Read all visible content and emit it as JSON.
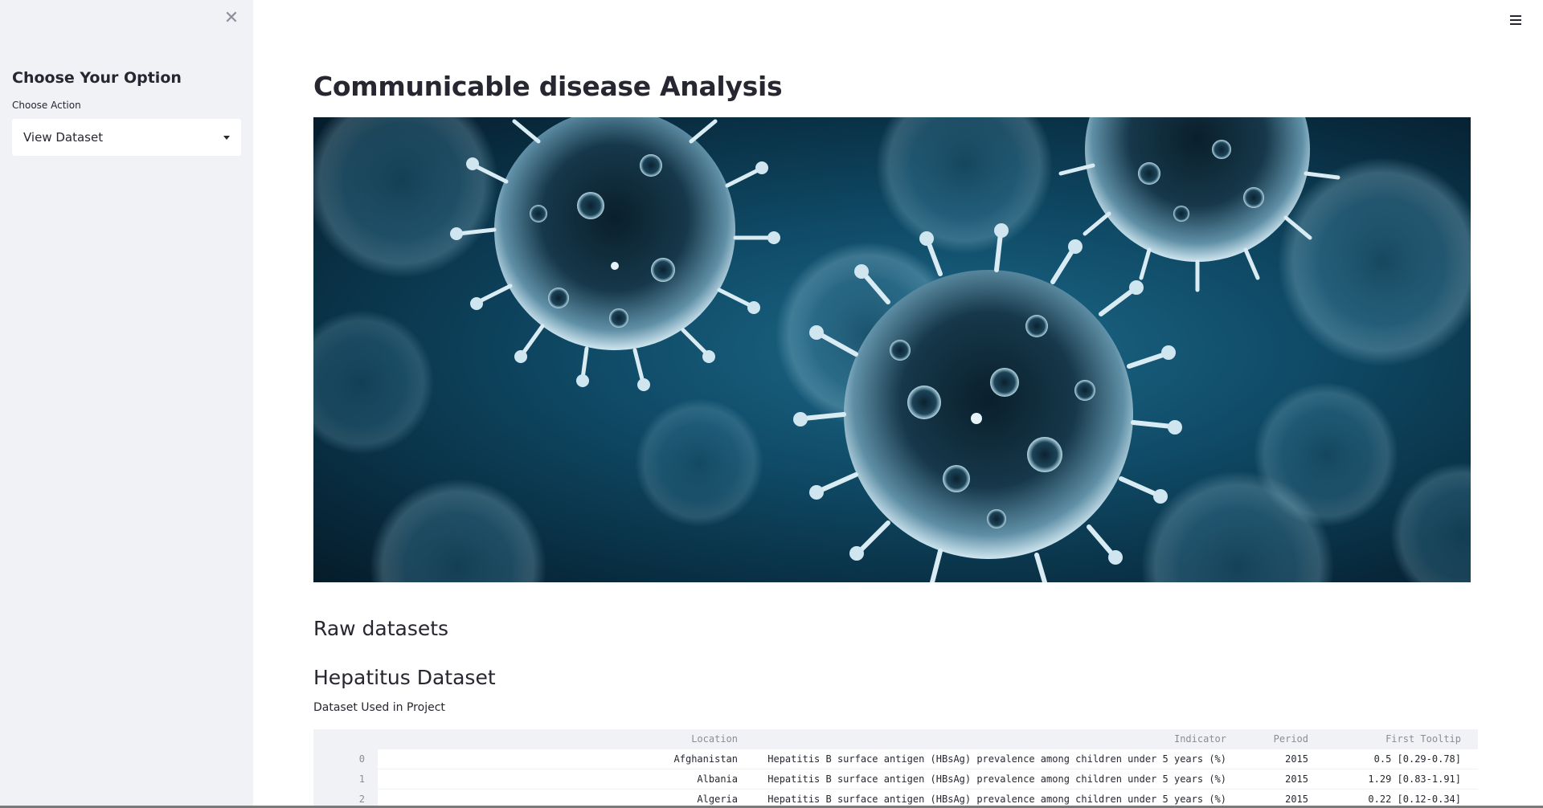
{
  "sidebar": {
    "close_icon": "close-icon",
    "title": "Choose Your Option",
    "select_label": "Choose Action",
    "select_value": "View Dataset"
  },
  "header": {
    "menu_icon": "hamburger-menu-icon"
  },
  "main": {
    "title": "Communicable disease Analysis",
    "hero_image": "virus-illustration",
    "raw_heading": "Raw datasets",
    "dataset_heading": "Hepatitus Dataset",
    "dataset_caption": "Dataset Used in Project"
  },
  "table": {
    "columns": [
      "Location",
      "Indicator",
      "Period",
      "First Tooltip"
    ],
    "rows": [
      {
        "index": "0",
        "location": "Afghanistan",
        "indicator": "Hepatitis B surface antigen (HBsAg) prevalence among children under 5 years (%)",
        "period": "2015",
        "tooltip": "0.5 [0.29-0.78]"
      },
      {
        "index": "1",
        "location": "Albania",
        "indicator": "Hepatitis B surface antigen (HBsAg) prevalence among children under 5 years (%)",
        "period": "2015",
        "tooltip": "1.29 [0.83-1.91]"
      },
      {
        "index": "2",
        "location": "Algeria",
        "indicator": "Hepatitis B surface antigen (HBsAg) prevalence among children under 5 years (%)",
        "period": "2015",
        "tooltip": "0.22 [0.12-0.34]"
      }
    ]
  },
  "colors": {
    "sidebar_bg": "#f0f2f6",
    "text": "#262730",
    "hero_dark": "#082a3d",
    "hero_mid": "#1d6a8a"
  }
}
